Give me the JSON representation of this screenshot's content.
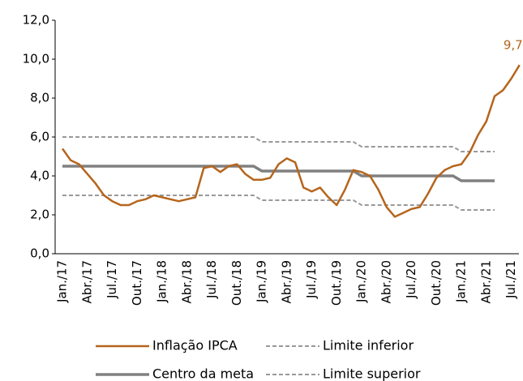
{
  "chart_data": {
    "type": "line",
    "categories": [
      "Jan./17",
      null,
      null,
      "Abr./17",
      null,
      null,
      "Jul./17",
      null,
      null,
      "Out./17",
      null,
      null,
      "Jan./18",
      null,
      null,
      "Abr./18",
      null,
      null,
      "Jul./18",
      null,
      null,
      "Out./18",
      null,
      null,
      "Jan./19",
      null,
      null,
      "Abr./19",
      null,
      null,
      "Jul./19",
      null,
      null,
      "Out./19",
      null,
      null,
      "Jan./20",
      null,
      null,
      "Abr./20",
      null,
      null,
      "Jul./20",
      null,
      null,
      "Out./20",
      null,
      null,
      "Jan./21",
      null,
      null,
      "Abr./21",
      null,
      null,
      "Jul./21",
      null
    ],
    "series": [
      {
        "name": "Inflação IPCA",
        "color": "#b5651d",
        "width": 2.5,
        "dashed": false,
        "values": [
          5.4,
          4.8,
          4.6,
          4.1,
          3.6,
          3.0,
          2.7,
          2.5,
          2.5,
          2.7,
          2.8,
          3.0,
          2.9,
          2.8,
          2.7,
          2.8,
          2.9,
          4.4,
          4.5,
          4.2,
          4.5,
          4.6,
          4.1,
          3.8,
          3.8,
          3.9,
          4.6,
          4.9,
          4.7,
          3.4,
          3.2,
          3.4,
          2.9,
          2.5,
          3.3,
          4.3,
          4.2,
          4.0,
          3.3,
          2.4,
          1.9,
          2.1,
          2.3,
          2.4,
          3.1,
          3.9,
          4.3,
          4.5,
          4.6,
          5.2,
          6.1,
          6.8,
          8.1,
          8.4,
          9.0,
          9.7
        ],
        "value_labels": [
          null,
          null,
          null,
          null,
          null,
          null,
          null,
          null,
          null,
          null,
          null,
          null,
          null,
          null,
          null,
          null,
          null,
          null,
          null,
          null,
          null,
          null,
          null,
          null,
          null,
          null,
          null,
          null,
          null,
          null,
          null,
          null,
          null,
          null,
          null,
          null,
          null,
          null,
          null,
          null,
          null,
          null,
          null,
          null,
          null,
          null,
          null,
          null,
          null,
          null,
          null,
          null,
          null,
          null,
          null,
          "9,7"
        ]
      },
      {
        "name": "Limite inferior",
        "color": "#999999",
        "width": 2,
        "dashed": true,
        "values": [
          3,
          3,
          3,
          3,
          3,
          3,
          3,
          3,
          3,
          3,
          3,
          3,
          3,
          3,
          3,
          3,
          3,
          3,
          3,
          3,
          3,
          3,
          3,
          3,
          2.75,
          2.75,
          2.75,
          2.75,
          2.75,
          2.75,
          2.75,
          2.75,
          2.75,
          2.75,
          2.75,
          2.75,
          2.5,
          2.5,
          2.5,
          2.5,
          2.5,
          2.5,
          2.5,
          2.5,
          2.5,
          2.5,
          2.5,
          2.5,
          2.25,
          2.25,
          2.25,
          2.25,
          2.25,
          null,
          null,
          null
        ]
      },
      {
        "name": "Centro da meta",
        "color": "#808080",
        "width": 3.5,
        "dashed": false,
        "values": [
          4.5,
          4.5,
          4.5,
          4.5,
          4.5,
          4.5,
          4.5,
          4.5,
          4.5,
          4.5,
          4.5,
          4.5,
          4.5,
          4.5,
          4.5,
          4.5,
          4.5,
          4.5,
          4.5,
          4.5,
          4.5,
          4.5,
          4.5,
          4.5,
          4.25,
          4.25,
          4.25,
          4.25,
          4.25,
          4.25,
          4.25,
          4.25,
          4.25,
          4.25,
          4.25,
          4.25,
          4,
          4,
          4,
          4,
          4,
          4,
          4,
          4,
          4,
          4,
          4,
          4,
          3.75,
          3.75,
          3.75,
          3.75,
          3.75,
          null,
          null,
          null
        ]
      },
      {
        "name": "Limite superior",
        "color": "#999999",
        "width": 2,
        "dashed": true,
        "values": [
          6,
          6,
          6,
          6,
          6,
          6,
          6,
          6,
          6,
          6,
          6,
          6,
          6,
          6,
          6,
          6,
          6,
          6,
          6,
          6,
          6,
          6,
          6,
          6,
          5.75,
          5.75,
          5.75,
          5.75,
          5.75,
          5.75,
          5.75,
          5.75,
          5.75,
          5.75,
          5.75,
          5.75,
          5.5,
          5.5,
          5.5,
          5.5,
          5.5,
          5.5,
          5.5,
          5.5,
          5.5,
          5.5,
          5.5,
          5.5,
          5.25,
          5.25,
          5.25,
          5.25,
          5.25,
          null,
          null,
          null
        ]
      }
    ],
    "ylim": [
      0,
      12
    ],
    "yticks": [
      {
        "value": 0,
        "label": "0,0"
      },
      {
        "value": 2,
        "label": "2,0"
      },
      {
        "value": 4,
        "label": "4,0"
      },
      {
        "value": 6,
        "label": "6,0"
      },
      {
        "value": 8,
        "label": "8,0"
      },
      {
        "value": 10,
        "label": "10,0"
      },
      {
        "value": 12,
        "label": "12,0"
      }
    ],
    "grid": false
  }
}
